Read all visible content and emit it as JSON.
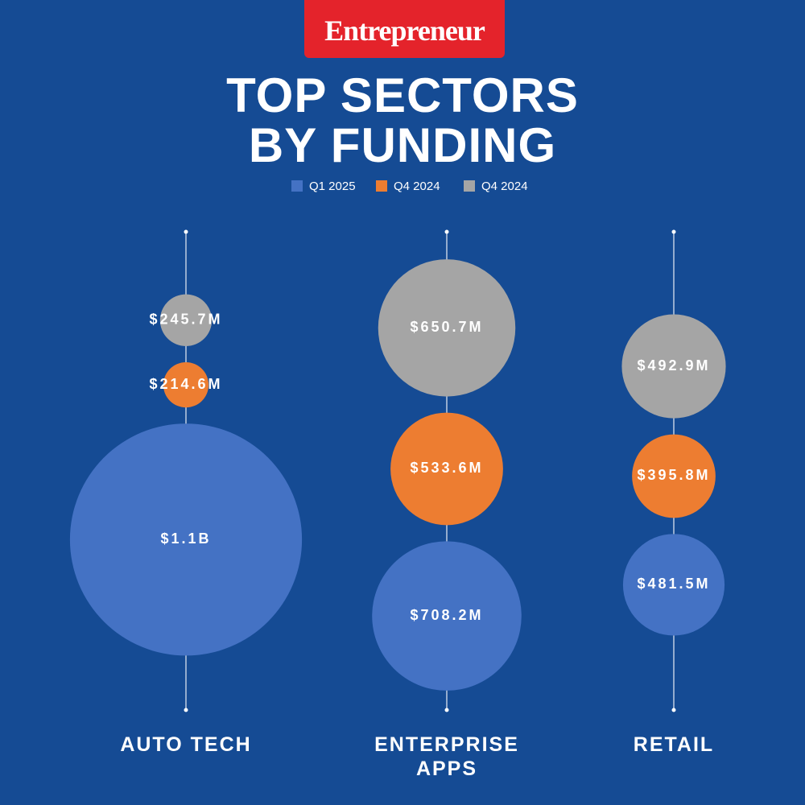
{
  "chart_data": {
    "type": "bubble",
    "logo": "Entrepreneur",
    "title": "TOP SECTORS BY FUNDING",
    "categories": [
      "AUTO TECH",
      "ENTERPRISE APPS",
      "RETAIL"
    ],
    "series": [
      {
        "name": "Q1 2025",
        "color": "#4472c4",
        "values": [
          1100,
          708.2,
          481.5
        ],
        "value_labels": [
          "$1.1B",
          "$708.2M",
          "$481.5M"
        ]
      },
      {
        "name": "Q4 2024",
        "color": "#ed7d31",
        "values": [
          214.6,
          533.6,
          395.8
        ],
        "value_labels": [
          "$214.6M",
          "$533.6M",
          "$395.8M"
        ]
      },
      {
        "name": "Q4 2024",
        "color": "#a5a5a5",
        "values": [
          245.7,
          650.7,
          492.9
        ],
        "value_labels": [
          "$245.7M",
          "$650.7M",
          "$492.9M"
        ]
      }
    ]
  }
}
